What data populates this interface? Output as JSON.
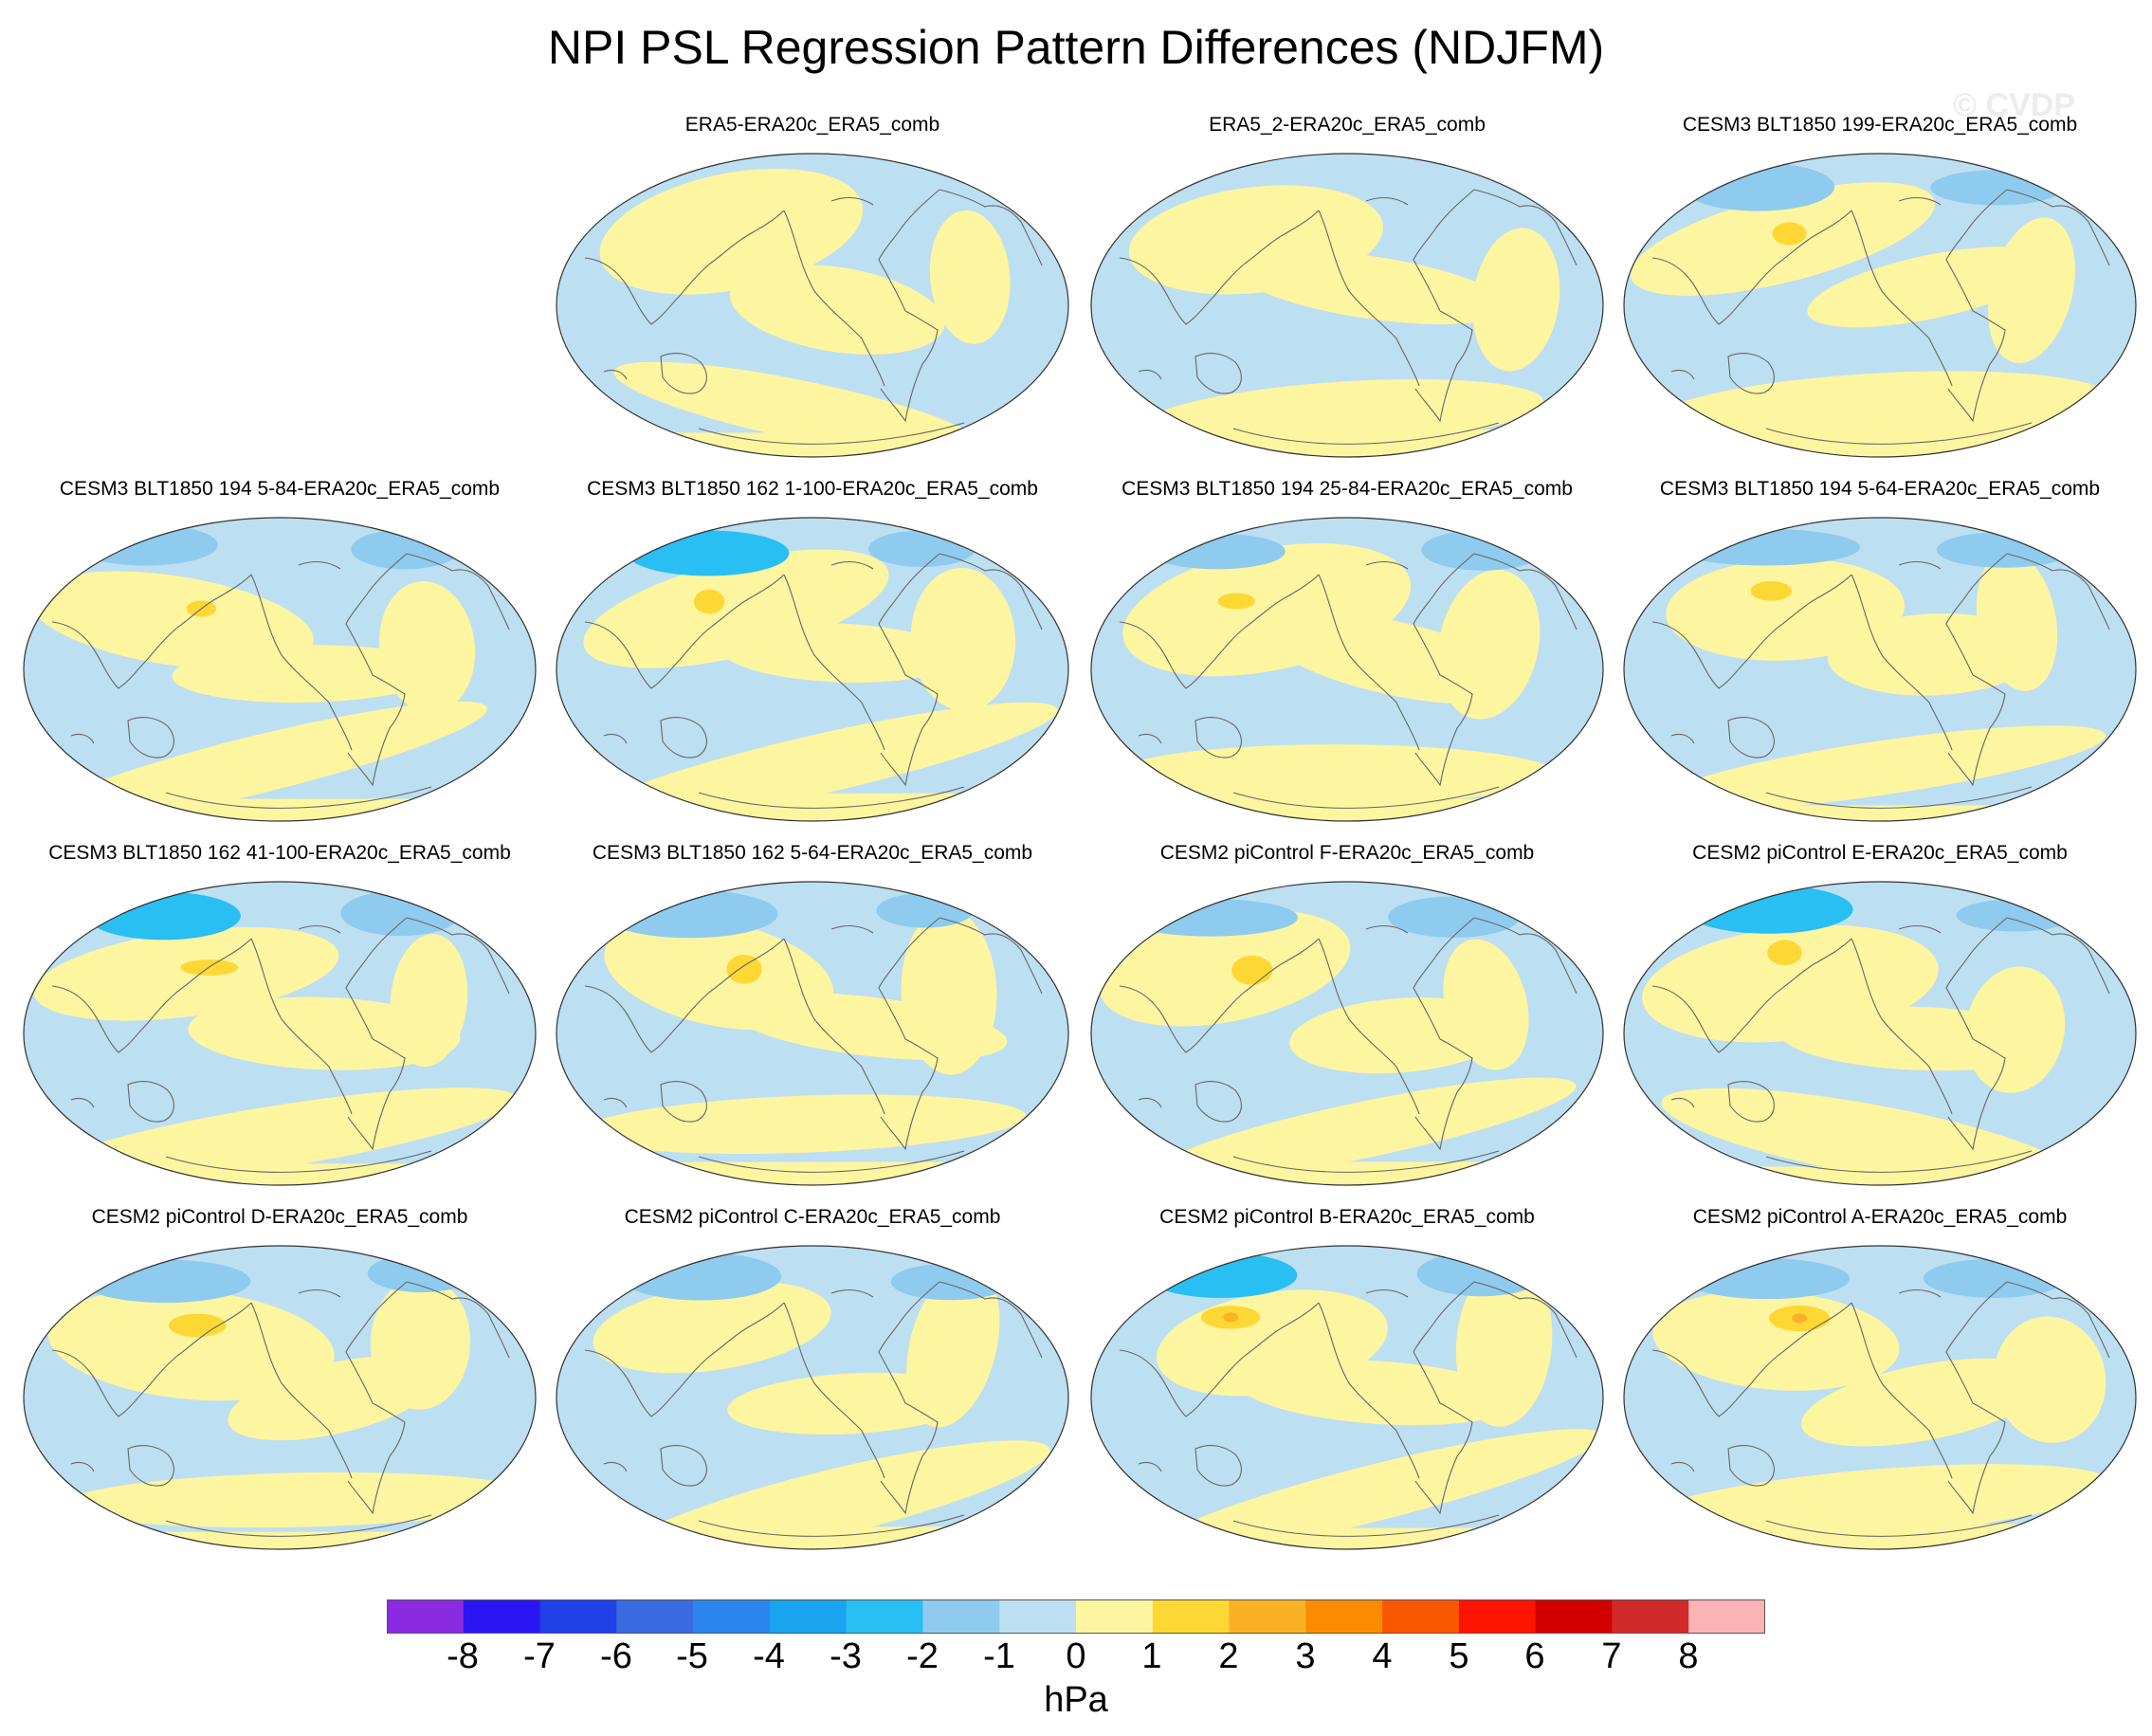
{
  "title": "NPI PSL Regression Pattern Differences (NDJFM)",
  "watermark": "© CVDP",
  "panels": [
    {
      "title": "ERA5-ERA20c_ERA5_comb",
      "variant": 0
    },
    {
      "title": "ERA5_2-ERA20c_ERA5_comb",
      "variant": 1
    },
    {
      "title": "CESM3 BLT1850 199-ERA20c_ERA5_comb",
      "variant": 2
    },
    {
      "title": "CESM3 BLT1850 194 5-84-ERA20c_ERA5_comb",
      "variant": 3
    },
    {
      "title": "CESM3 BLT1850 162 1-100-ERA20c_ERA5_comb",
      "variant": 4
    },
    {
      "title": "CESM3 BLT1850 194 25-84-ERA20c_ERA5_comb",
      "variant": 5
    },
    {
      "title": "CESM3 BLT1850 194 5-64-ERA20c_ERA5_comb",
      "variant": 6
    },
    {
      "title": "CESM3 BLT1850 162 41-100-ERA20c_ERA5_comb",
      "variant": 7
    },
    {
      "title": "CESM3 BLT1850 162 5-64-ERA20c_ERA5_comb",
      "variant": 8
    },
    {
      "title": "CESM2 piControl F-ERA20c_ERA5_comb",
      "variant": 9
    },
    {
      "title": "CESM2 piControl E-ERA20c_ERA5_comb",
      "variant": 10
    },
    {
      "title": "CESM2 piControl D-ERA20c_ERA5_comb",
      "variant": 11
    },
    {
      "title": "CESM2 piControl C-ERA20c_ERA5_comb",
      "variant": 12
    },
    {
      "title": "CESM2 piControl B-ERA20c_ERA5_comb",
      "variant": 13
    },
    {
      "title": "CESM2 piControl A-ERA20c_ERA5_comb",
      "variant": 14
    }
  ],
  "colorbar": {
    "labels": [
      "-8",
      "-7",
      "-6",
      "-5",
      "-4",
      "-3",
      "-2",
      "-1",
      "0",
      "1",
      "2",
      "3",
      "4",
      "5",
      "6",
      "7",
      "8"
    ],
    "colors": [
      "#8a2be2",
      "#2a16f5",
      "#2040e8",
      "#3a6ae0",
      "#2a86ee",
      "#18a4ef",
      "#29bff2",
      "#8ecbee",
      "#bddff2",
      "#fdf5a0",
      "#fdd835",
      "#fbb124",
      "#fb8c00",
      "#fb5600",
      "#fe1400",
      "#d40000",
      "#d12a2a",
      "#fbb4b6"
    ],
    "units": "hPa"
  }
}
